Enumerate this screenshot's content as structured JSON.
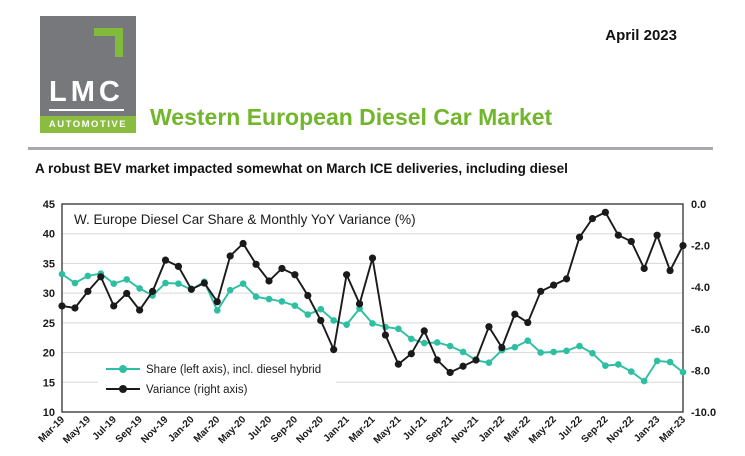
{
  "header": {
    "logo_line1": "LMC",
    "logo_band": "AUTOMOTIVE",
    "date": "April 2023",
    "title": "Western European Diesel Car Market",
    "subheadline": "A robust BEV market impacted somewhat on March ICE deliveries, including diesel"
  },
  "colors": {
    "brand_green": "#72b62c",
    "logo_band_green": "#8abc3f",
    "logo_gray": "#77787b",
    "divider_gray": "#a7a9ac",
    "share_teal": "#2ebfa2",
    "variance_black": "#1a1a1a",
    "gridline_gray": "#d8d8d8",
    "plot_border": "#3f3f3f"
  },
  "chart_data": {
    "type": "line",
    "title": "W. Europe Diesel Car Share & Monthly YoY Variance (%)",
    "grid": true,
    "legend_position": "inside-bottom-left",
    "categories": [
      "Mar-19",
      "Apr-19",
      "May-19",
      "Jun-19",
      "Jul-19",
      "Aug-19",
      "Sep-19",
      "Oct-19",
      "Nov-19",
      "Dec-19",
      "Jan-20",
      "Feb-20",
      "Mar-20",
      "Apr-20",
      "May-20",
      "Jun-20",
      "Jul-20",
      "Aug-20",
      "Sep-20",
      "Oct-20",
      "Nov-20",
      "Dec-20",
      "Jan-21",
      "Feb-21",
      "Mar-21",
      "Apr-21",
      "May-21",
      "Jun-21",
      "Jul-21",
      "Aug-21",
      "Sep-21",
      "Oct-21",
      "Nov-21",
      "Dec-21",
      "Jan-22",
      "Feb-22",
      "Mar-22",
      "Apr-22",
      "May-22",
      "Jun-22",
      "Jul-22",
      "Aug-22",
      "Sep-22",
      "Oct-22",
      "Nov-22",
      "Dec-22",
      "Jan-23",
      "Feb-23",
      "Mar-23"
    ],
    "x_tick_labels": [
      "Mar-19",
      "May-19",
      "Jul-19",
      "Sep-19",
      "Nov-19",
      "Jan-20",
      "Mar-20",
      "May-20",
      "Jul-20",
      "Sep-20",
      "Nov-20",
      "Jan-21",
      "Mar-21",
      "May-21",
      "Jul-21",
      "Sep-21",
      "Nov-21",
      "Jan-22",
      "Mar-22",
      "May-22",
      "Jul-22",
      "Sep-22",
      "Nov-22",
      "Jan-23",
      "Mar-23"
    ],
    "left_axis": {
      "min": 10,
      "max": 45,
      "ticks": [
        45,
        40,
        35,
        30,
        25,
        20,
        15,
        10
      ]
    },
    "right_axis": {
      "min": -10,
      "max": 0,
      "tick_labels": [
        "0.0",
        "-2.0",
        "-4.0",
        "-6.0",
        "-8.0",
        "-10.0"
      ],
      "tick_values": [
        0,
        -2,
        -4,
        -6,
        -8,
        -10
      ]
    },
    "series": [
      {
        "name": "Share (left axis), incl. diesel hybrid",
        "axis": "left",
        "color": "#2ebfa2",
        "values": [
          33.2,
          31.7,
          32.9,
          33.3,
          31.6,
          32.3,
          30.8,
          29.6,
          31.7,
          31.6,
          30.6,
          31.9,
          27.1,
          30.5,
          31.6,
          29.4,
          29.0,
          28.6,
          27.9,
          26.4,
          27.3,
          25.4,
          24.7,
          27.4,
          24.9,
          24.3,
          24.0,
          22.3,
          21.6,
          21.7,
          21.1,
          20.1,
          18.7,
          18.3,
          20.4,
          20.9,
          22.0,
          20.0,
          20.1,
          20.3,
          21.1,
          19.9,
          17.8,
          18.0,
          16.8,
          15.2,
          18.6,
          18.4,
          16.7
        ]
      },
      {
        "name": "Variance (right axis)",
        "axis": "right",
        "color": "#1a1a1a",
        "values": [
          -4.9,
          -5.0,
          -4.2,
          -3.5,
          -4.9,
          -4.3,
          -5.1,
          -4.2,
          -2.7,
          -3.0,
          -4.1,
          -3.8,
          -4.7,
          -2.5,
          -1.9,
          -2.9,
          -3.7,
          -3.1,
          -3.4,
          -4.4,
          -5.6,
          -7.0,
          -3.4,
          -4.8,
          -2.6,
          -6.3,
          -7.7,
          -7.2,
          -6.1,
          -7.5,
          -8.1,
          -7.8,
          -7.5,
          -5.9,
          -6.9,
          -5.3,
          -5.7,
          -4.2,
          -3.9,
          -3.6,
          -1.6,
          -0.7,
          -0.4,
          -1.5,
          -1.8,
          -3.1,
          -1.5,
          -3.2,
          -2.0
        ]
      }
    ]
  }
}
